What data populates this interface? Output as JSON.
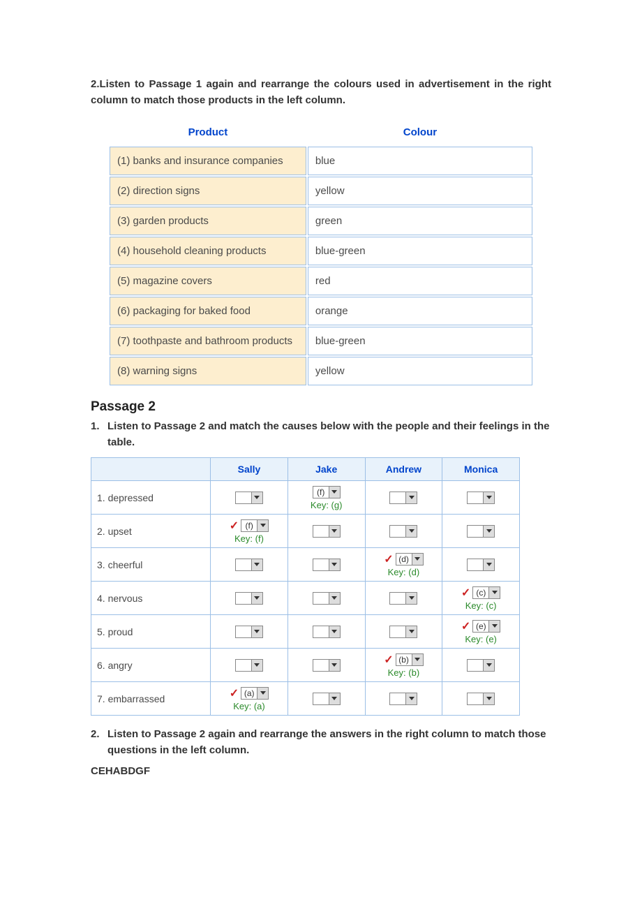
{
  "topInstruction": "2.Listen to Passage 1 again and rearrange the colours used in advertisement in the right column to match those products in the left column.",
  "table1": {
    "headers": {
      "product": "Product",
      "colour": "Colour"
    },
    "rows": [
      {
        "product": "(1) banks and insurance companies",
        "colour": "blue"
      },
      {
        "product": "(2) direction signs",
        "colour": "yellow"
      },
      {
        "product": "(3) garden products",
        "colour": "green"
      },
      {
        "product": "(4) household cleaning products",
        "colour": "blue-green"
      },
      {
        "product": "(5) magazine covers",
        "colour": "red"
      },
      {
        "product": "(6) packaging for baked food",
        "colour": "orange"
      },
      {
        "product": "(7) toothpaste and bathroom products",
        "colour": "blue-green"
      },
      {
        "product": "(8) warning signs",
        "colour": "yellow"
      }
    ]
  },
  "passage2Title": "Passage 2",
  "p2Instruction1Num": "1.",
  "p2Instruction1": "Listen to Passage 2 and match the causes below with the people and their feelings in the table.",
  "table2": {
    "colHeaders": [
      "Sally",
      "Jake",
      "Andrew",
      "Monica"
    ],
    "rowHeaders": [
      "1. depressed",
      "2. upset",
      "3. cheerful",
      "4. nervous",
      "5. proud",
      "6. angry",
      "7. embarrassed"
    ],
    "cells": [
      [
        {
          "val": "",
          "tick": false,
          "key": null
        },
        {
          "val": "(f)",
          "tick": false,
          "key": "Key: (g)"
        },
        {
          "val": "",
          "tick": false,
          "key": null
        },
        {
          "val": "",
          "tick": false,
          "key": null
        }
      ],
      [
        {
          "val": "(f)",
          "tick": true,
          "key": "Key: (f)"
        },
        {
          "val": "",
          "tick": false,
          "key": null
        },
        {
          "val": "",
          "tick": false,
          "key": null
        },
        {
          "val": "",
          "tick": false,
          "key": null
        }
      ],
      [
        {
          "val": "",
          "tick": false,
          "key": null
        },
        {
          "val": "",
          "tick": false,
          "key": null
        },
        {
          "val": "(d)",
          "tick": true,
          "key": "Key: (d)"
        },
        {
          "val": "",
          "tick": false,
          "key": null
        }
      ],
      [
        {
          "val": "",
          "tick": false,
          "key": null
        },
        {
          "val": "",
          "tick": false,
          "key": null
        },
        {
          "val": "",
          "tick": false,
          "key": null
        },
        {
          "val": "(c)",
          "tick": true,
          "key": "Key: (c)"
        }
      ],
      [
        {
          "val": "",
          "tick": false,
          "key": null
        },
        {
          "val": "",
          "tick": false,
          "key": null
        },
        {
          "val": "",
          "tick": false,
          "key": null
        },
        {
          "val": "(e)",
          "tick": true,
          "key": "Key: (e)"
        }
      ],
      [
        {
          "val": "",
          "tick": false,
          "key": null
        },
        {
          "val": "",
          "tick": false,
          "key": null
        },
        {
          "val": "(b)",
          "tick": true,
          "key": "Key: (b)"
        },
        {
          "val": "",
          "tick": false,
          "key": null
        }
      ],
      [
        {
          "val": "(a)",
          "tick": true,
          "key": "Key: (a)"
        },
        {
          "val": "",
          "tick": false,
          "key": null
        },
        {
          "val": "",
          "tick": false,
          "key": null
        },
        {
          "val": "",
          "tick": false,
          "key": null
        }
      ]
    ]
  },
  "p2Instruction2Num": "2.",
  "p2Instruction2": "Listen to Passage 2 again and rearrange the answers in the right column to match those questions in the left column.",
  "answerLine": "CEHABDGF"
}
